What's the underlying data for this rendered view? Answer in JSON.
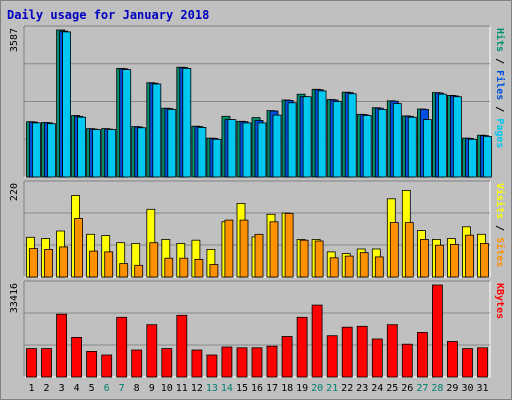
{
  "title": "Daily usage for January 2018",
  "colors": {
    "background": "#C0C0C0",
    "border_outer": "#808080",
    "title": "#0000C0",
    "grid": "#888888",
    "hits": "#009070",
    "files": "#0050E0",
    "pages": "#00C8F0",
    "visits": "#FFFF00",
    "sites": "#FF9000",
    "kbytes": "#FF0000",
    "weekend_label": "#00806E",
    "weekday_label": "#000000"
  },
  "chart_data": [
    {
      "type": "bar",
      "panel": "top",
      "ymax_label": "3587",
      "ylim": [
        0,
        3587
      ],
      "series": [
        {
          "name": "Hits",
          "values": [
            1350,
            1330,
            3587,
            1500,
            1180,
            1180,
            2650,
            1230,
            2300,
            1680,
            2680,
            1240,
            950,
            1480,
            1360,
            1450,
            1620,
            1880,
            2020,
            2140,
            1890,
            2070,
            1530,
            1690,
            1860,
            1490,
            1660,
            2060,
            1990,
            950,
            1020
          ]
        },
        {
          "name": "Files",
          "values": [
            1340,
            1320,
            3560,
            1480,
            1170,
            1170,
            2640,
            1220,
            2290,
            1670,
            2670,
            1230,
            940,
            1400,
            1350,
            1380,
            1610,
            1870,
            1960,
            2130,
            1880,
            2060,
            1520,
            1680,
            1850,
            1480,
            1650,
            2050,
            1980,
            940,
            1010
          ]
        },
        {
          "name": "Pages",
          "values": [
            1320,
            1300,
            3540,
            1460,
            1160,
            1160,
            2620,
            1200,
            2270,
            1650,
            2650,
            1210,
            920,
            1400,
            1320,
            1320,
            1510,
            1810,
            1960,
            2100,
            1840,
            2030,
            1500,
            1650,
            1790,
            1460,
            1400,
            2020,
            1960,
            920,
            990
          ]
        }
      ]
    },
    {
      "type": "bar",
      "panel": "middle",
      "ymax_label": "220",
      "ylim": [
        0,
        220
      ],
      "series": [
        {
          "name": "Visits",
          "values": [
            95,
            92,
            110,
            195,
            102,
            99,
            82,
            80,
            162,
            90,
            80,
            88,
            66,
            132,
            176,
            96,
            150,
            153,
            90,
            90,
            60,
            56,
            67,
            67,
            187,
            207,
            111,
            90,
            92,
            120,
            102
          ]
        },
        {
          "name": "Sites",
          "values": [
            68,
            66,
            72,
            140,
            62,
            60,
            32,
            28,
            82,
            45,
            45,
            42,
            30,
            136,
            136,
            102,
            132,
            152,
            88,
            86,
            46,
            50,
            58,
            48,
            130,
            130,
            90,
            76,
            78,
            100,
            80
          ]
        }
      ]
    },
    {
      "type": "bar",
      "panel": "bottom",
      "ymax_label": "33416",
      "ylim": [
        0,
        33416
      ],
      "series": [
        {
          "name": "KBytes",
          "values": [
            10300,
            10300,
            22800,
            14400,
            9300,
            8000,
            21700,
            9800,
            19000,
            10300,
            22400,
            9800,
            8000,
            10900,
            10600,
            10600,
            11200,
            14700,
            21700,
            26100,
            15000,
            18100,
            18400,
            13800,
            19000,
            11900,
            16200,
            33416,
            12900,
            10300,
            10600
          ]
        }
      ]
    }
  ],
  "x_labels": [
    "1",
    "2",
    "3",
    "4",
    "5",
    "6",
    "7",
    "8",
    "9",
    "10",
    "11",
    "12",
    "13",
    "14",
    "15",
    "16",
    "17",
    "18",
    "19",
    "20",
    "21",
    "22",
    "23",
    "24",
    "25",
    "26",
    "27",
    "28",
    "29",
    "30",
    "31"
  ],
  "weekend_days": [
    6,
    7,
    13,
    14,
    20,
    21,
    27,
    28
  ],
  "right_legends": [
    {
      "panel": "top",
      "parts": [
        {
          "text": "Pages",
          "color_key": "pages"
        },
        {
          "text": " / ",
          "color_key": "weekday_label"
        },
        {
          "text": "Files",
          "color_key": "files"
        },
        {
          "text": " / ",
          "color_key": "weekday_label"
        },
        {
          "text": "Hits",
          "color_key": "hits"
        }
      ]
    },
    {
      "panel": "middle",
      "parts": [
        {
          "text": "Sites",
          "color_key": "sites"
        },
        {
          "text": " / ",
          "color_key": "weekday_label"
        },
        {
          "text": "Visits",
          "color_key": "visits"
        }
      ]
    },
    {
      "panel": "bottom",
      "parts": [
        {
          "text": "KBytes",
          "color_key": "kbytes"
        }
      ]
    }
  ]
}
